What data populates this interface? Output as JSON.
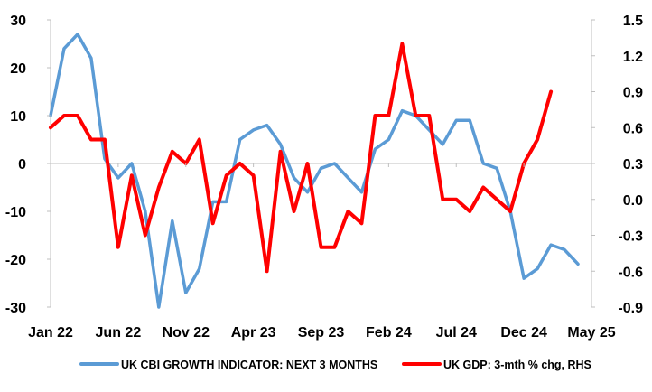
{
  "colors": {
    "cbi": "#5b9bd5",
    "gdp": "#ff0000",
    "axis": "#bfbfbf"
  },
  "chart_data": {
    "type": "line",
    "x": [
      "Jan 22",
      "Feb 22",
      "Mar 22",
      "Apr 22",
      "May 22",
      "Jun 22",
      "Jul 22",
      "Aug 22",
      "Sep 22",
      "Oct 22",
      "Nov 22",
      "Dec 22",
      "Jan 23",
      "Feb 23",
      "Mar 23",
      "Apr 23",
      "May 23",
      "Jun 23",
      "Jul 23",
      "Aug 23",
      "Sep 23",
      "Oct 23",
      "Nov 23",
      "Dec 23",
      "Jan 24",
      "Feb 24",
      "Mar 24",
      "Apr 24",
      "May 24",
      "Jun 24",
      "Jul 24",
      "Aug 24",
      "Sep 24",
      "Oct 24",
      "Nov 24",
      "Dec 24",
      "Jan 25",
      "Feb 25",
      "Mar 25",
      "Apr 25",
      "May 25"
    ],
    "x_tick_labels": [
      "Jan 22",
      "Jun 22",
      "Nov 22",
      "Apr 23",
      "Sep 23",
      "Feb 24",
      "Jul 24",
      "Dec 24",
      "May 25"
    ],
    "y_left": {
      "lim": [
        -30,
        30
      ],
      "ticks": [
        "30",
        "20",
        "10",
        "0",
        "-10",
        "-20",
        "-30"
      ]
    },
    "y_right": {
      "lim": [
        -0.9,
        1.5
      ],
      "ticks": [
        "1.5",
        "1.2",
        "0.9",
        "0.6",
        "0.3",
        "0.0",
        "-0.3",
        "-0.6",
        "-0.9"
      ]
    },
    "series": [
      {
        "name": "UK CBI GROWTH INDICATOR: NEXT 3 MONTHS",
        "axis": "left",
        "color": "#5b9bd5",
        "values": [
          10,
          24,
          27,
          22,
          1,
          -3,
          0,
          -10,
          -30,
          -12,
          -27,
          -22,
          -8,
          -8,
          5,
          7,
          8,
          4,
          -3,
          -6,
          -1,
          0,
          -3,
          -6,
          3,
          5,
          11,
          10,
          7,
          4,
          9,
          9,
          0,
          -1,
          -10,
          -24,
          -22,
          -17,
          -18,
          -21,
          null
        ]
      },
      {
        "name": "UK GDP: 3-mth % chg, RHS",
        "axis": "right",
        "color": "#ff0000",
        "values": [
          0.6,
          0.7,
          0.7,
          0.5,
          0.5,
          -0.4,
          0.2,
          -0.3,
          0.1,
          0.4,
          0.3,
          0.5,
          -0.2,
          0.2,
          0.3,
          0.2,
          -0.6,
          0.4,
          -0.1,
          0.3,
          -0.4,
          -0.4,
          -0.1,
          -0.2,
          0.7,
          0.7,
          1.3,
          0.7,
          0.7,
          0.0,
          0.0,
          -0.1,
          0.1,
          0.0,
          -0.1,
          0.3,
          0.5,
          0.9,
          null,
          null,
          null
        ]
      }
    ],
    "legend_position": "bottom"
  }
}
